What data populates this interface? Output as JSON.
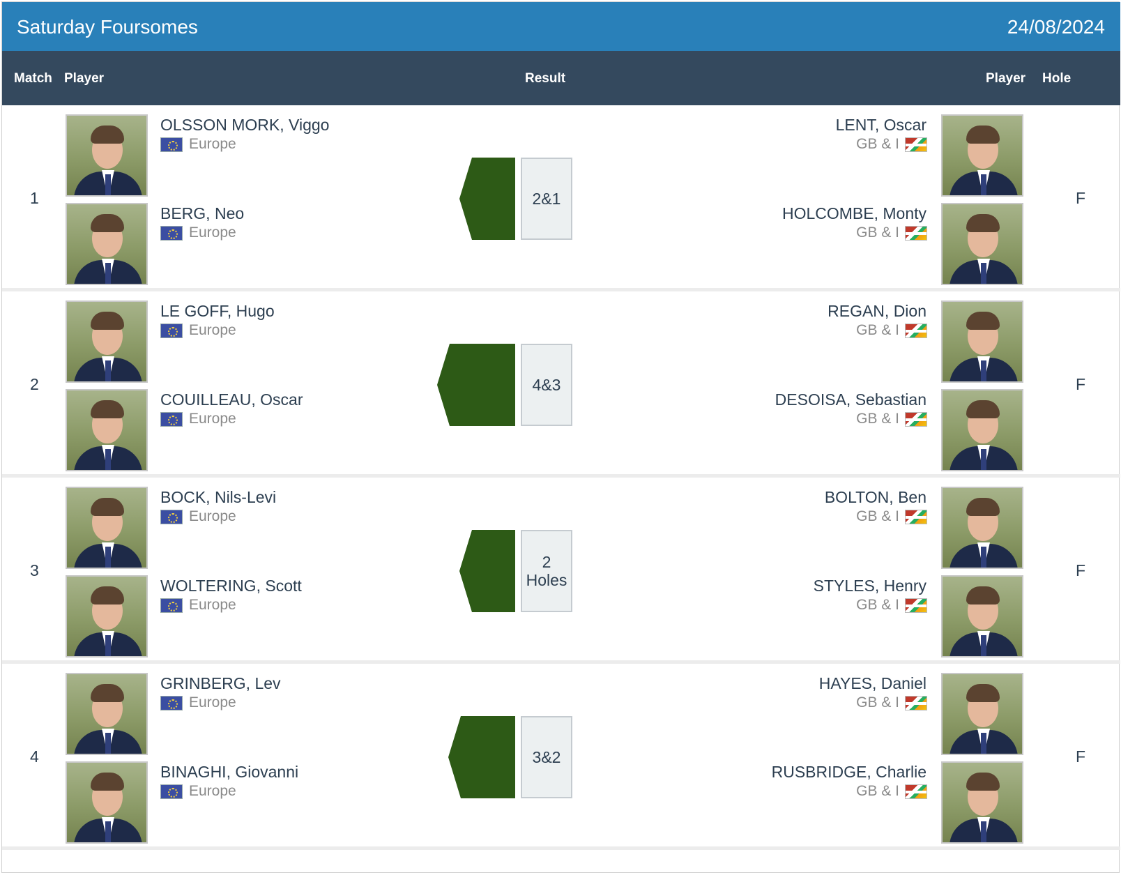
{
  "header": {
    "title": "Saturday Foursomes",
    "date": "24/08/2024"
  },
  "columns": {
    "match": "Match",
    "player_left": "Player",
    "result": "Result",
    "player_right": "Player",
    "hole": "Hole"
  },
  "matches": [
    {
      "number": "1",
      "result": "2&1",
      "hole": "F",
      "winner": "Europe",
      "margin_holes": 2,
      "left": [
        {
          "name": "OLSSON MORK, Viggo",
          "team": "Europe"
        },
        {
          "name": "BERG, Neo",
          "team": "Europe"
        }
      ],
      "right": [
        {
          "name": "LENT, Oscar",
          "team": "GB & I"
        },
        {
          "name": "HOLCOMBE, Monty",
          "team": "GB & I"
        }
      ]
    },
    {
      "number": "2",
      "result": "4&3",
      "hole": "F",
      "winner": "Europe",
      "margin_holes": 4,
      "left": [
        {
          "name": "LE GOFF, Hugo",
          "team": "Europe"
        },
        {
          "name": "COUILLEAU, Oscar",
          "team": "Europe"
        }
      ],
      "right": [
        {
          "name": "REGAN, Dion",
          "team": "GB & I"
        },
        {
          "name": "DESOISA, Sebastian",
          "team": "GB & I"
        }
      ]
    },
    {
      "number": "3",
      "result": "2 Holes",
      "hole": "F",
      "winner": "Europe",
      "margin_holes": 2,
      "left": [
        {
          "name": "BOCK, Nils-Levi",
          "team": "Europe"
        },
        {
          "name": "WOLTERING, Scott",
          "team": "Europe"
        }
      ],
      "right": [
        {
          "name": "BOLTON, Ben",
          "team": "GB & I"
        },
        {
          "name": "STYLES, Henry",
          "team": "GB & I"
        }
      ]
    },
    {
      "number": "4",
      "result": "3&2",
      "hole": "F",
      "winner": "Europe",
      "margin_holes": 3,
      "left": [
        {
          "name": "GRINBERG, Lev",
          "team": "Europe"
        },
        {
          "name": "BINAGHI, Giovanni",
          "team": "Europe"
        }
      ],
      "right": [
        {
          "name": "HAYES, Daniel",
          "team": "GB & I"
        },
        {
          "name": "RUSBRIDGE, Charlie",
          "team": "GB & I"
        }
      ]
    }
  ],
  "colors": {
    "title_bar": "#2980b9",
    "header_bar": "#34495e",
    "europe_win": "#2d5a16",
    "result_box": "#ecf0f1"
  },
  "icons": {
    "left_flag": "eu-flag-icon",
    "right_flag": "gbi-flag-icon"
  }
}
